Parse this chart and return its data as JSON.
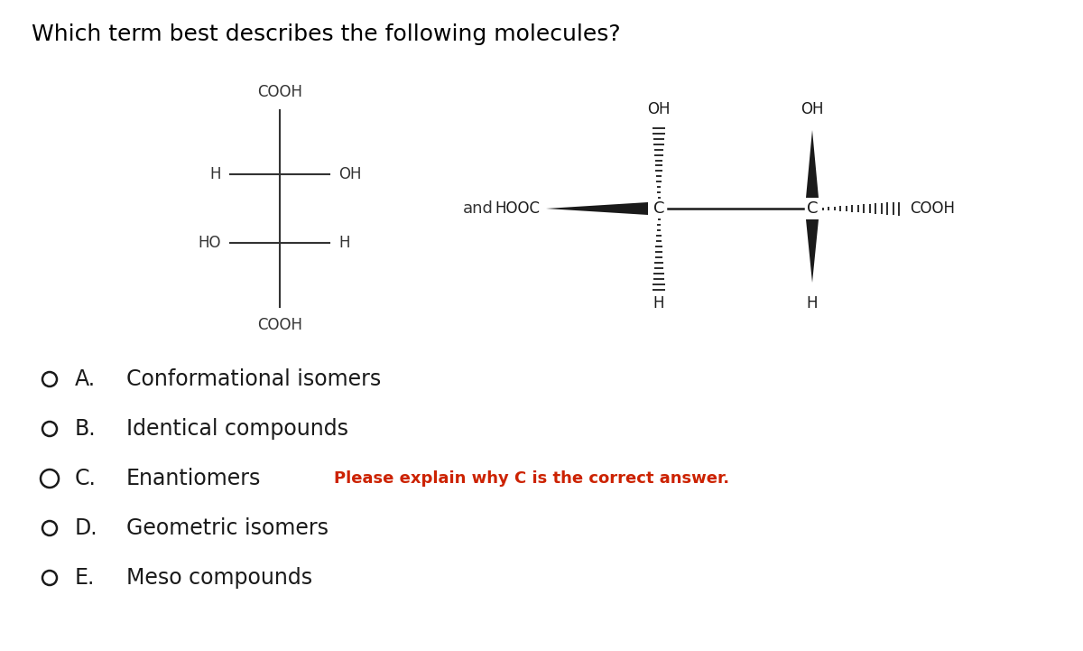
{
  "title": "Which term best describes the following molecules?",
  "title_fontsize": 18,
  "background_color": "#ffffff",
  "text_color": "#000000",
  "annotation_C": "Please explain why C is the correct answer.",
  "annotation_color": "#cc2200",
  "fig_width": 12.0,
  "fig_height": 7.21,
  "option_labels": [
    "A.",
    "B.",
    "C.",
    "D.",
    "E."
  ],
  "option_texts": [
    "Conformational isomers",
    "Identical compounds",
    "Enantiomers",
    "Geometric isomers",
    "Meso compounds"
  ],
  "circle_large_idx": 2
}
